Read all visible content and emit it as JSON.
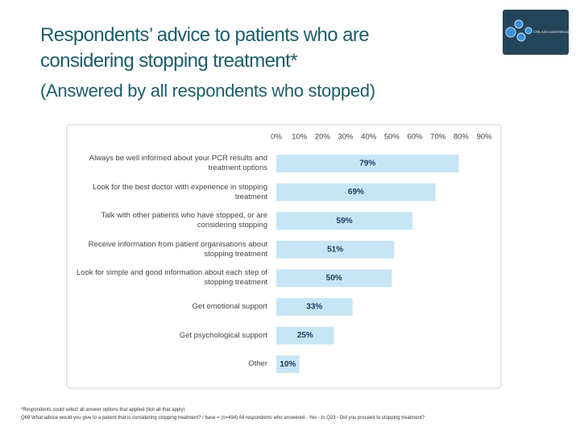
{
  "header": {
    "title_line1": "Respondents’ advice to patients who are",
    "title_line2": "considering stopping treatment*",
    "subtitle": "(Answered by all respondents who stopped)",
    "logo": "CMLAdvocatesNetwork"
  },
  "chart_data": {
    "type": "hbar",
    "categories": [
      "Always be well informed about your PCR results and treatment options",
      "Look for the best doctor with experience in stopping treatment",
      "Talk with other patients who have stopped, or are considering stopping",
      "Receive information from patient organisations about stopping treatment",
      "Look for simple and good information about each step of stopping treatment",
      "Get emotional support",
      "Get psychological support",
      "Other"
    ],
    "values": [
      79,
      69,
      59,
      51,
      50,
      33,
      25,
      10
    ],
    "value_labels": [
      "79%",
      "69%",
      "59%",
      "51%",
      "50%",
      "33%",
      "25%",
      "10%"
    ],
    "color": "#c6e6f5",
    "xlim": [
      0,
      90
    ],
    "xticks": [
      {
        "value": 0,
        "label": "0%"
      },
      {
        "value": 10,
        "label": "10%"
      },
      {
        "value": 20,
        "label": "20%"
      },
      {
        "value": 30,
        "label": "30%"
      },
      {
        "value": 40,
        "label": "40%"
      },
      {
        "value": 50,
        "label": "50%"
      },
      {
        "value": 60,
        "label": "60%"
      },
      {
        "value": 70,
        "label": "70%"
      },
      {
        "value": 80,
        "label": "80%"
      },
      {
        "value": 90,
        "label": "90%"
      }
    ]
  },
  "footnotes": [
    "*Respondents could select all answer options that applied (tick all that apply)",
    "Q69 What advice would you give to a patient that is considering stopping treatment? / base = (n=494) All respondents who answered - Yes - to Q23 - Did you proceed to stopping treatment?"
  ]
}
